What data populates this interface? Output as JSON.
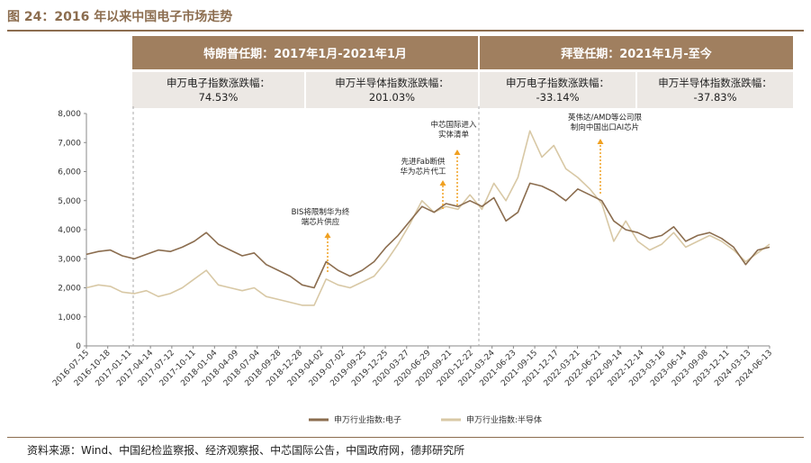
{
  "header": {
    "title": "图 24：2016 年以来中国电子市场走势",
    "period1": "特朗普任期：2017年1月-2021年1月",
    "period2": "拜登任期：2021年1月-至今"
  },
  "metrics": [
    {
      "label": "申万电子指数涨跌幅：",
      "value": "74.53%"
    },
    {
      "label": "申万半导体指数涨跌幅：",
      "value": "201.03%"
    },
    {
      "label": "申万电子指数涨跌幅：",
      "value": "-33.14%"
    },
    {
      "label": "申万半导体指数涨跌幅：",
      "value": "-37.83%"
    }
  ],
  "source": "资料来源：Wind、中国纪检监察报、经济观察报、中芯国际公告，中国政府网，德邦研究所",
  "colors": {
    "electronics": "#8b6d4f",
    "semiconductor": "#d8c8a5",
    "accent": "#a07f5f",
    "arrow": "#f0a020"
  },
  "chart_data": {
    "type": "line",
    "ylim": [
      0,
      8000
    ],
    "yticks": [
      "0",
      "1,000",
      "2,000",
      "3,000",
      "4,000",
      "5,000",
      "6,000",
      "7,000",
      "8,000"
    ],
    "xticks": [
      "2016-07-15",
      "2016-10-18",
      "2017-01-11",
      "2017-04-14",
      "2017-07-12",
      "2017-10-11",
      "2018-01-04",
      "2018-04-09",
      "2018-07-04",
      "2018-09-28",
      "2018-12-28",
      "2019-04-02",
      "2019-07-02",
      "2019-09-25",
      "2019-12-25",
      "2020-03-27",
      "2020-06-29",
      "2020-09-21",
      "2020-12-22",
      "2021-03-24",
      "2021-06-23",
      "2021-09-15",
      "2021-12-17",
      "2022-03-21",
      "2022-06-21",
      "2022-09-14",
      "2022-12-14",
      "2023-03-16",
      "2023-06-14",
      "2023-09-08",
      "2023-12-11",
      "2024-03-13",
      "2024-06-13"
    ],
    "series": [
      {
        "name": "申万行业指数:电子",
        "values": [
          3150,
          3250,
          3300,
          3100,
          3000,
          3150,
          3300,
          3250,
          3400,
          3600,
          3900,
          3500,
          3300,
          3100,
          3200,
          2800,
          2600,
          2400,
          2100,
          2000,
          2900,
          2600,
          2400,
          2600,
          2900,
          3400,
          3800,
          4300,
          4800,
          4600,
          4900,
          4800,
          5000,
          4800,
          5100,
          4300,
          4600,
          5600,
          5500,
          5300,
          5000,
          5400,
          5200,
          5000,
          4300,
          4000,
          3900,
          3700,
          3800,
          4100,
          3600,
          3800,
          3900,
          3700,
          3400,
          2800,
          3300,
          3400
        ]
      },
      {
        "name": "申万行业指数:半导体",
        "values": [
          2000,
          2100,
          2050,
          1850,
          1800,
          1900,
          1700,
          1800,
          2000,
          2300,
          2600,
          2100,
          2000,
          1900,
          2000,
          1700,
          1600,
          1500,
          1400,
          1400,
          2300,
          2100,
          2000,
          2200,
          2400,
          2900,
          3500,
          4200,
          5000,
          4600,
          4800,
          4700,
          5200,
          4700,
          5600,
          5000,
          5800,
          7400,
          6500,
          6900,
          6100,
          5800,
          5400,
          4900,
          3600,
          4300,
          3600,
          3300,
          3500,
          3900,
          3400,
          3600,
          3800,
          3600,
          3300,
          2900,
          3200,
          3500
        ]
      }
    ],
    "annotations": [
      {
        "text": [
          "BIS将限制华为终",
          "端芯片供应"
        ],
        "x": "2019-05"
      },
      {
        "text": [
          "先进Fab断供",
          "华为芯片代工"
        ],
        "x": "2020-09"
      },
      {
        "text": [
          "中芯国际进入",
          "实体清单"
        ],
        "x": "2020-12"
      },
      {
        "text": [
          "英伟达/AMD等公司限",
          "制向中国出口AI芯片"
        ],
        "x": "2022-08"
      }
    ],
    "legend": "bottom"
  }
}
